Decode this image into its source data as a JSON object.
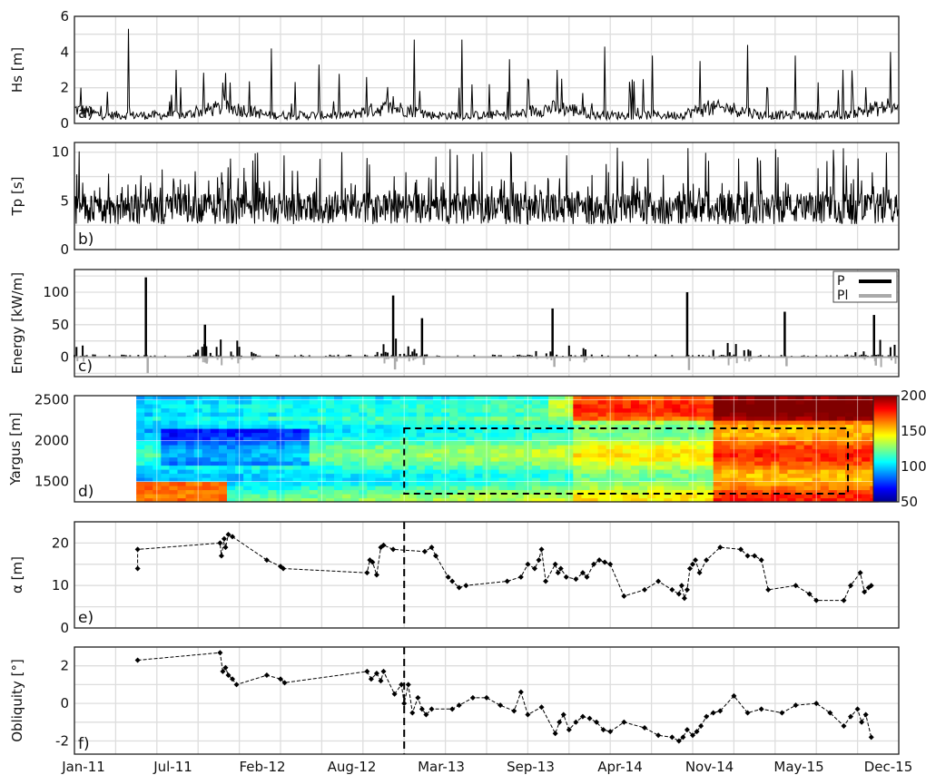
{
  "x_axis": {
    "tick_labels": [
      "Jan-11",
      "Jul-11",
      "Feb-12",
      "Aug-12",
      "Mar-13",
      "Sep-13",
      "Apr-14",
      "Nov-14",
      "May-15",
      "Dec-15"
    ]
  },
  "chart_data": [
    {
      "type": "line",
      "panel_label": "a)",
      "ylabel": "Hs [m]",
      "ylim": [
        0,
        6
      ],
      "yticks": [
        "0",
        "2",
        "4",
        "6"
      ],
      "grid": true,
      "series": [
        {
          "color": "#000000",
          "peaks": [
            2.0,
            5.3,
            3.0,
            1.6,
            4.2,
            3.3,
            2.6,
            4.7,
            3.6,
            3.0,
            4.3,
            3.8,
            3.5,
            4.4,
            3.8,
            3.0,
            4.0
          ]
        }
      ]
    },
    {
      "type": "line",
      "panel_label": "b)",
      "ylabel": "Tp [s]",
      "ylim": [
        0,
        11
      ],
      "yticks": [
        "0",
        "5",
        "10"
      ],
      "grid": true,
      "series": [
        {
          "color": "#000000",
          "range": [
            2,
            10.5
          ]
        }
      ]
    },
    {
      "type": "bar",
      "panel_label": "c)",
      "ylabel": "Energy [kW/m]",
      "ylim": [
        -30,
        135
      ],
      "yticks": [
        "0",
        "50",
        "100"
      ],
      "grid": true,
      "legend": {
        "position": "top-right",
        "entries": [
          {
            "name": "P",
            "color": "#000000"
          },
          {
            "name": "Pl",
            "color": "#aaaaaa"
          }
        ]
      },
      "series": [
        {
          "name": "P",
          "peaks": [
            123,
            50,
            95,
            60,
            75,
            100,
            70,
            65
          ]
        },
        {
          "name": "Pl",
          "min": -25
        }
      ]
    },
    {
      "type": "heatmap",
      "panel_label": "d)",
      "ylabel": "Yargus [m]",
      "ylim": [
        1250,
        2550
      ],
      "yticks": [
        "1500",
        "2000",
        "2500"
      ],
      "colorbar": {
        "min": 50,
        "max": 200,
        "ticks": [
          "50",
          "100",
          "150",
          "200"
        ],
        "colormap": "jet"
      },
      "highlight_box": {
        "x_range": [
          "Jan-13",
          "Sep-15"
        ],
        "y_range": [
          1350,
          2150
        ],
        "style": "dashed"
      }
    },
    {
      "type": "line",
      "panel_label": "e)",
      "ylabel": "α [m]",
      "ylim": [
        0,
        25
      ],
      "yticks": [
        "0",
        "10",
        "20"
      ],
      "grid": true,
      "vline_at": "Jan-13",
      "series": [
        {
          "marker": "diamond",
          "color": "#000000",
          "t": [
            4.6,
            4.6,
            10.6,
            10.7,
            10.9,
            11.0,
            11.2,
            11.5,
            14.0,
            15.0,
            15.2,
            21.3,
            21.5,
            21.7,
            22.0,
            22.3,
            22.5,
            23.2,
            25.5,
            26.0,
            26.3,
            27.2,
            27.5,
            28.0,
            28.5,
            31.5,
            32.5,
            33.0,
            33.5,
            33.8,
            34.0,
            34.3,
            35.0,
            35.2,
            35.4,
            35.8,
            36.5,
            37.0,
            37.3,
            37.8,
            38.2,
            38.6,
            39.0,
            40.0,
            41.5,
            42.5,
            43.5,
            44.0,
            44.2,
            44.4,
            44.6,
            44.8,
            45.0,
            45.2,
            45.5,
            46.0,
            47.0,
            48.5,
            49.0,
            49.5,
            50.0,
            50.5,
            52.5,
            53.5,
            54.0,
            56.0,
            56.5,
            57.2,
            57.5,
            57.8,
            58.0
          ],
          "values": [
            14,
            18.5,
            20,
            17,
            21,
            19,
            22,
            21.5,
            16,
            14.5,
            14,
            13,
            16,
            15.5,
            12.5,
            19,
            19.5,
            18.5,
            18,
            19,
            17,
            12,
            11,
            9.5,
            10,
            11,
            12,
            15,
            14,
            16,
            18.5,
            11,
            15,
            13,
            14,
            12,
            11.5,
            13,
            12,
            15,
            16,
            15.5,
            15,
            7.5,
            9,
            11,
            9,
            8,
            10,
            7,
            9,
            14,
            15,
            16,
            13,
            16,
            19,
            18.5,
            17,
            17,
            16,
            9,
            10,
            8,
            6.5,
            6.5,
            10,
            13,
            8.5,
            9.5,
            10
          ]
        }
      ]
    },
    {
      "type": "line",
      "panel_label": "f)",
      "ylabel": "Obliquity [°]",
      "ylim": [
        -2.7,
        3
      ],
      "yticks": [
        "-2",
        "0",
        "2"
      ],
      "grid": true,
      "vline_at": "Jan-13",
      "series": [
        {
          "marker": "diamond",
          "color": "#000000",
          "t": [
            4.6,
            10.6,
            10.8,
            11.0,
            11.2,
            11.5,
            11.8,
            14.0,
            15.0,
            15.3,
            21.3,
            21.6,
            22.0,
            22.3,
            22.5,
            23.3,
            23.8,
            24.0,
            24.3,
            24.6,
            25.0,
            25.3,
            25.6,
            26.0,
            27.5,
            28.0,
            29.0,
            30.0,
            31.0,
            32.0,
            32.5,
            33.0,
            34.0,
            35.0,
            35.3,
            35.6,
            36.0,
            36.5,
            37.0,
            37.5,
            38.0,
            38.5,
            39.0,
            40.0,
            41.5,
            42.5,
            43.5,
            44.0,
            44.3,
            44.6,
            45.0,
            45.3,
            45.6,
            46.0,
            46.5,
            47.0,
            48.0,
            49.0,
            50.0,
            51.5,
            52.5,
            54.0,
            55.0,
            56.0,
            56.5,
            57.0,
            57.3,
            57.6,
            58.0
          ],
          "values": [
            2.3,
            2.7,
            1.7,
            1.9,
            1.5,
            1.3,
            1.0,
            1.5,
            1.3,
            1.1,
            1.7,
            1.3,
            1.6,
            1.2,
            1.7,
            0.5,
            1.0,
            0.0,
            1.0,
            -0.5,
            0.3,
            -0.3,
            -0.6,
            -0.3,
            -0.3,
            -0.1,
            0.3,
            0.3,
            -0.1,
            -0.4,
            0.6,
            -0.6,
            -0.2,
            -1.6,
            -1.0,
            -0.6,
            -1.4,
            -1.0,
            -0.7,
            -0.8,
            -1.0,
            -1.4,
            -1.5,
            -1.0,
            -1.3,
            -1.7,
            -1.8,
            -2.0,
            -1.8,
            -1.4,
            -1.7,
            -1.5,
            -1.2,
            -0.7,
            -0.5,
            -0.4,
            0.4,
            -0.5,
            -0.3,
            -0.5,
            -0.1,
            0.0,
            -0.5,
            -1.2,
            -0.7,
            -0.3,
            -1.0,
            -0.6,
            -1.8
          ]
        }
      ]
    }
  ]
}
